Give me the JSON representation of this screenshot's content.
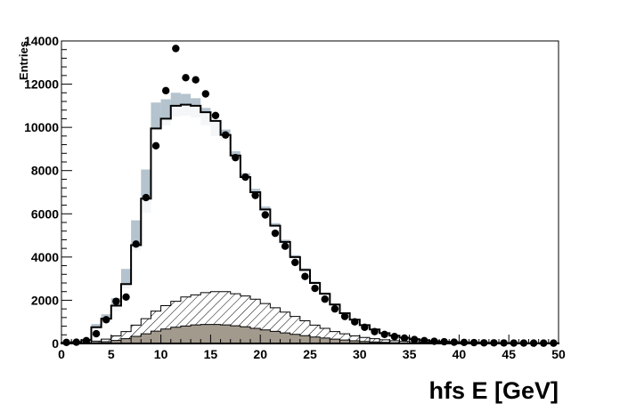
{
  "chart_data": {
    "type": "histogram",
    "xlabel": "hfs E [GeV]",
    "ylabel": "Entries",
    "xlim": [
      0,
      50
    ],
    "ylim": [
      0,
      14000
    ],
    "x_ticks": [
      0,
      5,
      10,
      15,
      20,
      25,
      30,
      35,
      40,
      45,
      50
    ],
    "y_ticks": [
      0,
      2000,
      4000,
      6000,
      8000,
      10000,
      12000,
      14000
    ],
    "bin_width": 1,
    "bin_centers": [
      0.5,
      1.5,
      2.5,
      3.5,
      4.5,
      5.5,
      6.5,
      7.5,
      8.5,
      9.5,
      10.5,
      11.5,
      12.5,
      13.5,
      14.5,
      15.5,
      16.5,
      17.5,
      18.5,
      19.5,
      20.5,
      21.5,
      22.5,
      23.5,
      24.5,
      25.5,
      26.5,
      27.5,
      28.5,
      29.5,
      30.5,
      31.5,
      32.5,
      33.5,
      34.5,
      35.5,
      36.5,
      37.5,
      38.5,
      39.5,
      40.5,
      41.5,
      42.5,
      43.5,
      44.5,
      45.5,
      46.5,
      47.5,
      48.5,
      49.5
    ],
    "series": [
      {
        "role": "data",
        "style": "markers",
        "values": [
          50,
          60,
          130,
          450,
          1100,
          1950,
          2150,
          4600,
          6750,
          9150,
          11700,
          13650,
          12300,
          12200,
          11550,
          10550,
          9650,
          8600,
          7700,
          6850,
          5950,
          5100,
          4500,
          3750,
          3100,
          2550,
          2050,
          1600,
          1250,
          1000,
          750,
          550,
          420,
          320,
          250,
          180,
          130,
          100,
          80,
          60,
          50,
          40,
          30,
          30,
          25,
          20,
          20,
          15,
          15,
          15
        ]
      },
      {
        "role": "total-mc",
        "style": "line",
        "values": [
          30,
          60,
          150,
          750,
          1150,
          1750,
          2750,
          4550,
          6700,
          9950,
          10400,
          11000,
          11050,
          11000,
          10700,
          10300,
          9650,
          8700,
          7700,
          7000,
          6200,
          5450,
          4700,
          4000,
          3400,
          2800,
          2300,
          1800,
          1400,
          1100,
          850,
          650,
          480,
          360,
          270,
          200,
          150,
          110,
          80,
          60,
          50,
          40,
          30,
          25,
          20,
          15,
          15,
          10,
          10,
          10
        ]
      },
      {
        "role": "mc-uncertainty",
        "style": "band",
        "values": [
          30,
          60,
          150,
          750,
          1150,
          1800,
          3000,
          5000,
          7050,
          10500,
          10700,
          11050,
          11050,
          10900,
          10500,
          9950,
          9650,
          8700,
          7700,
          7000,
          6200,
          5450,
          4700,
          4000,
          3400,
          2800,
          2300,
          1800,
          1400,
          1100,
          850,
          650,
          480,
          360,
          270,
          200,
          150,
          110,
          80,
          60,
          50,
          40,
          30,
          25,
          20,
          15,
          15,
          10,
          10,
          10
        ],
        "half_width": [
          20,
          30,
          60,
          150,
          200,
          300,
          450,
          700,
          1000,
          650,
          600,
          550,
          500,
          450,
          400,
          350,
          250,
          200,
          180,
          160,
          140,
          120,
          100,
          90,
          80,
          70,
          60,
          50,
          40,
          35,
          30,
          25,
          20,
          15,
          12,
          10,
          8,
          6,
          5,
          4,
          3,
          3,
          2,
          2,
          2,
          2,
          2,
          2,
          2,
          2
        ]
      },
      {
        "role": "background",
        "style": "hatched",
        "values": [
          5,
          10,
          40,
          110,
          200,
          350,
          550,
          850,
          1150,
          1500,
          1750,
          1950,
          2150,
          2250,
          2350,
          2400,
          2400,
          2300,
          2200,
          2050,
          1850,
          1650,
          1450,
          1250,
          1050,
          850,
          700,
          550,
          450,
          350,
          280,
          220,
          170,
          130,
          100,
          75,
          55,
          40,
          30,
          20,
          15,
          12,
          10,
          8,
          6,
          5,
          4,
          3,
          3,
          2
        ]
      },
      {
        "role": "background",
        "style": "filled",
        "color": "#a39a8e",
        "values": [
          2,
          5,
          15,
          40,
          80,
          140,
          220,
          330,
          450,
          570,
          670,
          750,
          810,
          860,
          880,
          880,
          860,
          820,
          770,
          700,
          630,
          560,
          490,
          420,
          360,
          300,
          250,
          200,
          160,
          125,
          95,
          70,
          52,
          38,
          28,
          20,
          14,
          10,
          7,
          5,
          4,
          3,
          2,
          2,
          1,
          1,
          1,
          1,
          1,
          1
        ]
      }
    ]
  }
}
